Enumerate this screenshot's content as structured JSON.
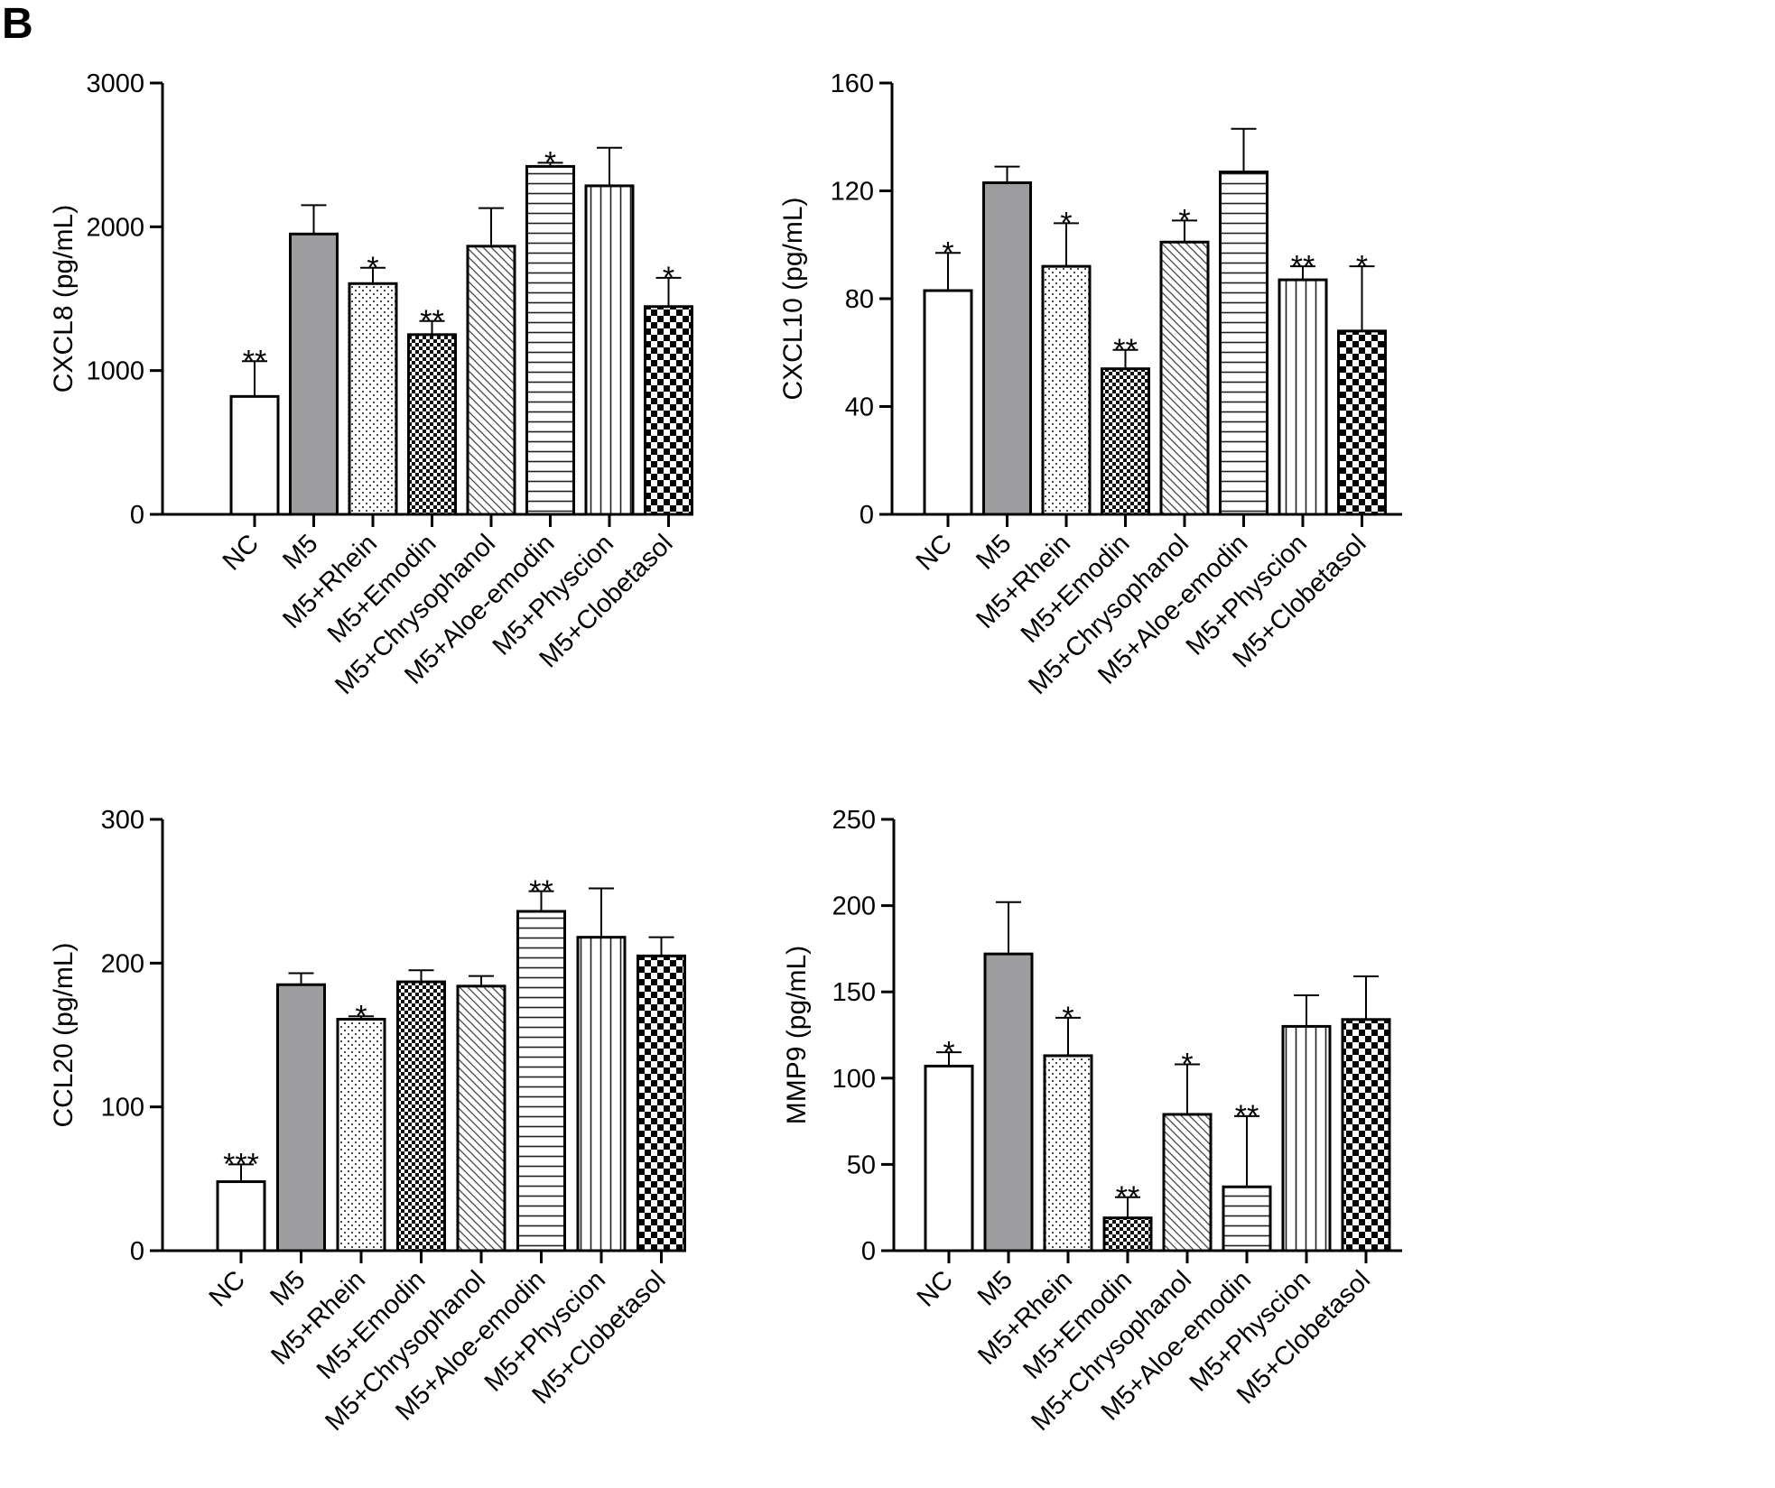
{
  "panel_letter": "B",
  "chart_data": [
    {
      "type": "bar",
      "ylabel": "CXCL8 (pg/mL)",
      "ylim": [
        0,
        3000
      ],
      "yticks": [
        0,
        1000,
        2000,
        3000
      ],
      "categories": [
        "NC",
        "M5",
        "M5+Rhein",
        "M5+Emodin",
        "M5+Chrysophanol",
        "M5+Aloe-emodin",
        "M5+Physcion",
        "M5+Clobetasol"
      ],
      "values": [
        820,
        1950,
        1605,
        1250,
        1865,
        2420,
        2285,
        1445
      ],
      "errors": [
        245,
        200,
        110,
        95,
        265,
        25,
        265,
        200
      ],
      "significance": [
        "**",
        "",
        "*",
        "**",
        "",
        "*",
        "",
        "*"
      ],
      "patterns": [
        "white",
        "gray",
        "dots",
        "checker-small",
        "diag-down",
        "horizontal",
        "vertical",
        "checker-large"
      ]
    },
    {
      "type": "bar",
      "ylabel": "CXCL10 (pg/mL)",
      "ylim": [
        0,
        160
      ],
      "yticks": [
        0,
        40,
        80,
        120,
        160
      ],
      "categories": [
        "NC",
        "M5",
        "M5+Rhein",
        "M5+Emodin",
        "M5+Chrysophanol",
        "M5+Aloe-emodin",
        "M5+Physcion",
        "M5+Clobetasol"
      ],
      "values": [
        83,
        123,
        92,
        54,
        101,
        127,
        87,
        68
      ],
      "errors": [
        14,
        6,
        16,
        7,
        8,
        16,
        5,
        24
      ],
      "significance": [
        "*",
        "",
        "*",
        "**",
        "*",
        "",
        "**",
        "*"
      ],
      "patterns": [
        "white",
        "gray",
        "dots",
        "checker-small",
        "diag-down",
        "horizontal",
        "vertical",
        "checker-large"
      ]
    },
    {
      "type": "bar",
      "ylabel": "CCL20 (pg/mL)",
      "ylim": [
        0,
        300
      ],
      "yticks": [
        0,
        100,
        200,
        300
      ],
      "categories": [
        "NC",
        "M5",
        "M5+Rhein",
        "M5+Emodin",
        "M5+Chrysophanol",
        "M5+Aloe-emodin",
        "M5+Physcion",
        "M5+Clobetasol"
      ],
      "values": [
        48,
        185,
        161,
        187,
        184,
        236,
        218,
        205
      ],
      "errors": [
        12,
        8,
        2,
        8,
        7,
        14,
        34,
        13
      ],
      "significance": [
        "***",
        "",
        "*",
        "",
        "",
        "**",
        "",
        ""
      ],
      "patterns": [
        "white",
        "gray",
        "dots",
        "checker-small",
        "diag-down",
        "horizontal",
        "vertical",
        "checker-large"
      ]
    },
    {
      "type": "bar",
      "ylabel": "MMP9 (pg/mL)",
      "ylim": [
        0,
        250
      ],
      "yticks": [
        0,
        50,
        100,
        150,
        200,
        250
      ],
      "categories": [
        "NC",
        "M5",
        "M5+Rhein",
        "M5+Emodin",
        "M5+Chrysophanol",
        "M5+Aloe-emodin",
        "M5+Physcion",
        "M5+Clobetasol"
      ],
      "values": [
        107,
        172,
        113,
        19,
        79,
        37,
        130,
        134
      ],
      "errors": [
        8,
        30,
        22,
        12,
        29,
        41,
        18,
        25
      ],
      "significance": [
        "*",
        "",
        "*",
        "**",
        "*",
        "**",
        "",
        ""
      ],
      "patterns": [
        "white",
        "gray",
        "dots",
        "checker-small",
        "diag-down",
        "horizontal",
        "vertical",
        "checker-large"
      ]
    }
  ]
}
